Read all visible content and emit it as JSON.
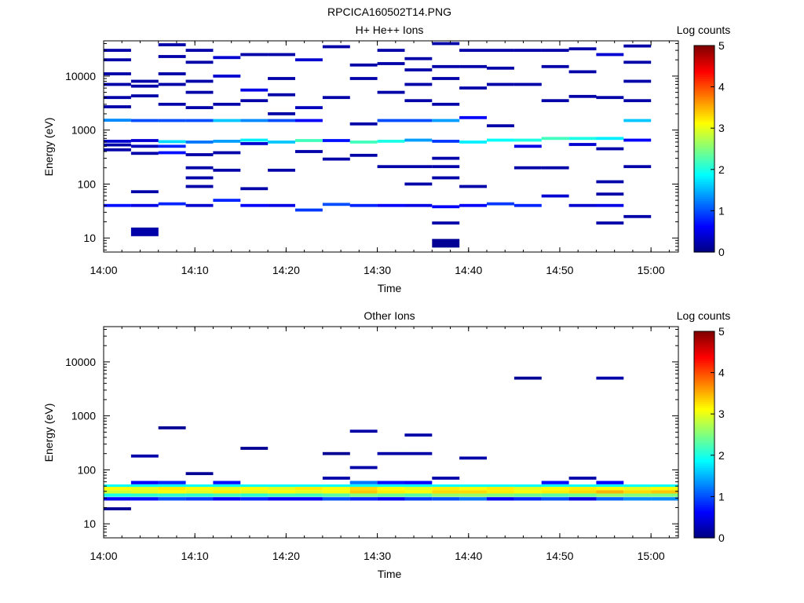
{
  "figure_title": "RPCICA160502T14.PNG",
  "colorbar": {
    "label": "Log counts",
    "range": [
      0,
      5
    ],
    "ticks": [
      "0",
      "1",
      "2",
      "3",
      "4",
      "5"
    ],
    "colormap": "jet"
  },
  "chart_data": [
    {
      "type": "heatmap",
      "title": "H+ He++ Ions",
      "xlabel": "Time",
      "ylabel": "Energy (eV)",
      "y_scale": "log",
      "xlim": [
        "14:00",
        "15:03"
      ],
      "ylim": [
        5.5,
        45000
      ],
      "x_ticks": [
        "14:00",
        "14:10",
        "14:20",
        "14:30",
        "14:40",
        "14:50",
        "15:00"
      ],
      "y_ticks": [
        "10",
        "100",
        "1000",
        "10000"
      ],
      "time_bins": [
        "14:00",
        "14:03",
        "14:06",
        "14:09",
        "14:12",
        "14:15",
        "14:18",
        "14:21",
        "14:24",
        "14:27",
        "14:30",
        "14:33",
        "14:36",
        "14:39",
        "14:42",
        "14:45",
        "14:48",
        "14:51",
        "14:54",
        "14:57",
        "15:00"
      ],
      "cells": [
        {
          "bin": 0,
          "e": 40,
          "v": 0.7
        },
        {
          "bin": 0,
          "e": 430,
          "v": 0.2
        },
        {
          "bin": 0,
          "e": 530,
          "v": 0.2
        },
        {
          "bin": 0,
          "e": 620,
          "v": 0.4
        },
        {
          "bin": 0,
          "e": 1520,
          "v": 1.3
        },
        {
          "bin": 0,
          "e": 2700,
          "v": 0.2
        },
        {
          "bin": 0,
          "e": 4000,
          "v": 0.2
        },
        {
          "bin": 0,
          "e": 7000,
          "v": 0.2
        },
        {
          "bin": 0,
          "e": 11000,
          "v": 0.2
        },
        {
          "bin": 0,
          "e": 20000,
          "v": 0.2
        },
        {
          "bin": 0,
          "e": 30000,
          "v": 0.2
        },
        {
          "bin": 1,
          "e": 13,
          "v": 0.2
        },
        {
          "bin": 1,
          "e": 40,
          "v": 0.5
        },
        {
          "bin": 1,
          "e": 72,
          "v": 0.2
        },
        {
          "bin": 1,
          "e": 370,
          "v": 0.2
        },
        {
          "bin": 1,
          "e": 500,
          "v": 0.3
        },
        {
          "bin": 1,
          "e": 640,
          "v": 0.4
        },
        {
          "bin": 1,
          "e": 1500,
          "v": 1.0
        },
        {
          "bin": 1,
          "e": 4300,
          "v": 0.2
        },
        {
          "bin": 1,
          "e": 6500,
          "v": 0.2
        },
        {
          "bin": 1,
          "e": 8000,
          "v": 0.2
        },
        {
          "bin": 2,
          "e": 43,
          "v": 0.8
        },
        {
          "bin": 2,
          "e": 380,
          "v": 0.7
        },
        {
          "bin": 2,
          "e": 500,
          "v": 0.8
        },
        {
          "bin": 2,
          "e": 610,
          "v": 1.7
        },
        {
          "bin": 2,
          "e": 1500,
          "v": 1.0
        },
        {
          "bin": 2,
          "e": 3000,
          "v": 0.2
        },
        {
          "bin": 2,
          "e": 7000,
          "v": 0.2
        },
        {
          "bin": 2,
          "e": 11000,
          "v": 0.2
        },
        {
          "bin": 2,
          "e": 23000,
          "v": 0.2
        },
        {
          "bin": 2,
          "e": 38000,
          "v": 0.2
        },
        {
          "bin": 3,
          "e": 40,
          "v": 0.4
        },
        {
          "bin": 3,
          "e": 90,
          "v": 0.2
        },
        {
          "bin": 3,
          "e": 130,
          "v": 0.2
        },
        {
          "bin": 3,
          "e": 200,
          "v": 0.2
        },
        {
          "bin": 3,
          "e": 350,
          "v": 0.2
        },
        {
          "bin": 3,
          "e": 600,
          "v": 1.2
        },
        {
          "bin": 3,
          "e": 1500,
          "v": 1.0
        },
        {
          "bin": 3,
          "e": 2600,
          "v": 0.2
        },
        {
          "bin": 3,
          "e": 5000,
          "v": 0.2
        },
        {
          "bin": 3,
          "e": 8000,
          "v": 0.2
        },
        {
          "bin": 3,
          "e": 18000,
          "v": 0.2
        },
        {
          "bin": 3,
          "e": 30000,
          "v": 0.2
        },
        {
          "bin": 4,
          "e": 50,
          "v": 0.8
        },
        {
          "bin": 4,
          "e": 180,
          "v": 0.2
        },
        {
          "bin": 4,
          "e": 380,
          "v": 0.2
        },
        {
          "bin": 4,
          "e": 620,
          "v": 1.4
        },
        {
          "bin": 4,
          "e": 1500,
          "v": 1.6
        },
        {
          "bin": 4,
          "e": 3000,
          "v": 0.2
        },
        {
          "bin": 4,
          "e": 10000,
          "v": 0.4
        },
        {
          "bin": 4,
          "e": 22000,
          "v": 0.4
        },
        {
          "bin": 5,
          "e": 40,
          "v": 0.6
        },
        {
          "bin": 5,
          "e": 82,
          "v": 0.2
        },
        {
          "bin": 5,
          "e": 560,
          "v": 0.4
        },
        {
          "bin": 5,
          "e": 650,
          "v": 1.8
        },
        {
          "bin": 5,
          "e": 1500,
          "v": 1.3
        },
        {
          "bin": 5,
          "e": 3500,
          "v": 0.2
        },
        {
          "bin": 5,
          "e": 5500,
          "v": 0.5
        },
        {
          "bin": 5,
          "e": 25000,
          "v": 0.2
        },
        {
          "bin": 6,
          "e": 40,
          "v": 0.5
        },
        {
          "bin": 6,
          "e": 180,
          "v": 0.2
        },
        {
          "bin": 6,
          "e": 600,
          "v": 1.6
        },
        {
          "bin": 6,
          "e": 1500,
          "v": 1.0
        },
        {
          "bin": 6,
          "e": 2000,
          "v": 0.2
        },
        {
          "bin": 6,
          "e": 4500,
          "v": 0.2
        },
        {
          "bin": 6,
          "e": 9000,
          "v": 0.2
        },
        {
          "bin": 6,
          "e": 25000,
          "v": 0.2
        },
        {
          "bin": 7,
          "e": 33,
          "v": 0.9
        },
        {
          "bin": 7,
          "e": 400,
          "v": 0.2
        },
        {
          "bin": 7,
          "e": 640,
          "v": 2.2
        },
        {
          "bin": 7,
          "e": 1500,
          "v": 0.6
        },
        {
          "bin": 7,
          "e": 2600,
          "v": 0.3
        },
        {
          "bin": 7,
          "e": 20000,
          "v": 0.4
        },
        {
          "bin": 8,
          "e": 42,
          "v": 1.0
        },
        {
          "bin": 8,
          "e": 290,
          "v": 0.2
        },
        {
          "bin": 8,
          "e": 640,
          "v": 0.7
        },
        {
          "bin": 8,
          "e": 4000,
          "v": 0.2
        },
        {
          "bin": 8,
          "e": 35000,
          "v": 0.2
        },
        {
          "bin": 9,
          "e": 40,
          "v": 0.8
        },
        {
          "bin": 9,
          "e": 340,
          "v": 0.2
        },
        {
          "bin": 9,
          "e": 600,
          "v": 2.2
        },
        {
          "bin": 9,
          "e": 1300,
          "v": 0.2
        },
        {
          "bin": 9,
          "e": 9000,
          "v": 0.2
        },
        {
          "bin": 9,
          "e": 16000,
          "v": 0.2
        },
        {
          "bin": 10,
          "e": 40,
          "v": 0.6
        },
        {
          "bin": 10,
          "e": 210,
          "v": 0.2
        },
        {
          "bin": 10,
          "e": 620,
          "v": 2.0
        },
        {
          "bin": 10,
          "e": 1500,
          "v": 1.0
        },
        {
          "bin": 10,
          "e": 5000,
          "v": 0.2
        },
        {
          "bin": 10,
          "e": 17000,
          "v": 0.2
        },
        {
          "bin": 10,
          "e": 30000,
          "v": 0.2
        },
        {
          "bin": 11,
          "e": 40,
          "v": 0.5
        },
        {
          "bin": 11,
          "e": 100,
          "v": 0.2
        },
        {
          "bin": 11,
          "e": 210,
          "v": 0.2
        },
        {
          "bin": 11,
          "e": 650,
          "v": 1.4
        },
        {
          "bin": 11,
          "e": 1500,
          "v": 1.0
        },
        {
          "bin": 11,
          "e": 3500,
          "v": 0.2
        },
        {
          "bin": 11,
          "e": 7000,
          "v": 0.2
        },
        {
          "bin": 11,
          "e": 13000,
          "v": 0.2
        },
        {
          "bin": 11,
          "e": 21000,
          "v": 0.2
        },
        {
          "bin": 12,
          "e": 8,
          "v": 0.1
        },
        {
          "bin": 12,
          "e": 19,
          "v": 0.2
        },
        {
          "bin": 12,
          "e": 38,
          "v": 0.6
        },
        {
          "bin": 12,
          "e": 130,
          "v": 0.2
        },
        {
          "bin": 12,
          "e": 210,
          "v": 0.2
        },
        {
          "bin": 12,
          "e": 300,
          "v": 0.2
        },
        {
          "bin": 12,
          "e": 620,
          "v": 0.9
        },
        {
          "bin": 12,
          "e": 1500,
          "v": 1.4
        },
        {
          "bin": 12,
          "e": 3000,
          "v": 0.2
        },
        {
          "bin": 12,
          "e": 9000,
          "v": 0.2
        },
        {
          "bin": 12,
          "e": 15000,
          "v": 0.2
        },
        {
          "bin": 12,
          "e": 40000,
          "v": 0.2
        },
        {
          "bin": 13,
          "e": 40,
          "v": 0.6
        },
        {
          "bin": 13,
          "e": 90,
          "v": 0.2
        },
        {
          "bin": 13,
          "e": 600,
          "v": 1.8
        },
        {
          "bin": 13,
          "e": 1700,
          "v": 0.6
        },
        {
          "bin": 13,
          "e": 6000,
          "v": 0.2
        },
        {
          "bin": 13,
          "e": 15000,
          "v": 0.2
        },
        {
          "bin": 13,
          "e": 30000,
          "v": 0.2
        },
        {
          "bin": 14,
          "e": 43,
          "v": 0.9
        },
        {
          "bin": 14,
          "e": 650,
          "v": 1.9
        },
        {
          "bin": 14,
          "e": 1200,
          "v": 0.2
        },
        {
          "bin": 14,
          "e": 7000,
          "v": 0.2
        },
        {
          "bin": 14,
          "e": 14000,
          "v": 0.2
        },
        {
          "bin": 14,
          "e": 30000,
          "v": 0.2
        },
        {
          "bin": 15,
          "e": 40,
          "v": 0.8
        },
        {
          "bin": 15,
          "e": 200,
          "v": 0.2
        },
        {
          "bin": 15,
          "e": 500,
          "v": 0.5
        },
        {
          "bin": 15,
          "e": 650,
          "v": 2.0
        },
        {
          "bin": 15,
          "e": 7000,
          "v": 0.2
        },
        {
          "bin": 15,
          "e": 30000,
          "v": 0.2
        },
        {
          "bin": 16,
          "e": 60,
          "v": 0.4
        },
        {
          "bin": 16,
          "e": 200,
          "v": 0.2
        },
        {
          "bin": 16,
          "e": 700,
          "v": 2.2
        },
        {
          "bin": 16,
          "e": 3500,
          "v": 0.2
        },
        {
          "bin": 16,
          "e": 15000,
          "v": 0.2
        },
        {
          "bin": 16,
          "e": 30000,
          "v": 0.2
        },
        {
          "bin": 17,
          "e": 40,
          "v": 0.4
        },
        {
          "bin": 17,
          "e": 540,
          "v": 0.4
        },
        {
          "bin": 17,
          "e": 700,
          "v": 2.0
        },
        {
          "bin": 17,
          "e": 4200,
          "v": 0.2
        },
        {
          "bin": 17,
          "e": 12000,
          "v": 0.2
        },
        {
          "bin": 17,
          "e": 32000,
          "v": 0.2
        },
        {
          "bin": 18,
          "e": 19,
          "v": 0.2
        },
        {
          "bin": 18,
          "e": 40,
          "v": 0.5
        },
        {
          "bin": 18,
          "e": 65,
          "v": 0.2
        },
        {
          "bin": 18,
          "e": 110,
          "v": 0.2
        },
        {
          "bin": 18,
          "e": 450,
          "v": 0.2
        },
        {
          "bin": 18,
          "e": 700,
          "v": 1.8
        },
        {
          "bin": 18,
          "e": 4000,
          "v": 0.2
        },
        {
          "bin": 18,
          "e": 25000,
          "v": 0.4
        },
        {
          "bin": 19,
          "e": 25,
          "v": 0.2
        },
        {
          "bin": 19,
          "e": 210,
          "v": 0.2
        },
        {
          "bin": 19,
          "e": 650,
          "v": 0.6
        },
        {
          "bin": 19,
          "e": 1500,
          "v": 1.6
        },
        {
          "bin": 19,
          "e": 3500,
          "v": 0.2
        },
        {
          "bin": 19,
          "e": 8000,
          "v": 0.2
        },
        {
          "bin": 19,
          "e": 18000,
          "v": 0.2
        },
        {
          "bin": 19,
          "e": 36000,
          "v": 0.2
        }
      ]
    },
    {
      "type": "heatmap",
      "title": "Other Ions",
      "xlabel": "Time",
      "ylabel": "Energy (eV)",
      "y_scale": "log",
      "xlim": [
        "14:00",
        "15:03"
      ],
      "ylim": [
        5.5,
        45000
      ],
      "x_ticks": [
        "14:00",
        "14:10",
        "14:20",
        "14:30",
        "14:40",
        "14:50",
        "15:00"
      ],
      "y_ticks": [
        "10",
        "100",
        "1000",
        "10000"
      ],
      "time_bins": [
        "14:00",
        "14:03",
        "14:06",
        "14:09",
        "14:12",
        "14:15",
        "14:18",
        "14:21",
        "14:24",
        "14:27",
        "14:30",
        "14:33",
        "14:36",
        "14:39",
        "14:42",
        "14:45",
        "14:48",
        "14:51",
        "14:54",
        "14:57",
        "15:00"
      ],
      "cells": [
        {
          "bin": 0,
          "e": 19,
          "v": 0.1
        },
        {
          "bin": 1,
          "e": 180,
          "v": 0.2
        },
        {
          "bin": 2,
          "e": 600,
          "v": 0.1
        },
        {
          "bin": 3,
          "e": 85,
          "v": 0.1
        },
        {
          "bin": 5,
          "e": 250,
          "v": 0.1
        },
        {
          "bin": 8,
          "e": 200,
          "v": 0.1
        },
        {
          "bin": 8,
          "e": 70,
          "v": 0.2
        },
        {
          "bin": 9,
          "e": 520,
          "v": 0.2
        },
        {
          "bin": 9,
          "e": 110,
          "v": 0.2
        },
        {
          "bin": 10,
          "e": 200,
          "v": 0.2
        },
        {
          "bin": 11,
          "e": 200,
          "v": 0.2
        },
        {
          "bin": 11,
          "e": 440,
          "v": 0.2
        },
        {
          "bin": 12,
          "e": 70,
          "v": 0.2
        },
        {
          "bin": 13,
          "e": 165,
          "v": 0.2
        },
        {
          "bin": 15,
          "e": 5000,
          "v": 0.1
        },
        {
          "bin": 17,
          "e": 70,
          "v": 0.2
        },
        {
          "bin": 18,
          "e": 5000,
          "v": 0.2
        }
      ],
      "bands": [
        {
          "e": 58,
          "values": [
            0,
            0.6,
            0.8,
            0,
            0.7,
            0,
            0,
            0,
            0,
            1.2,
            0.7,
            0.6,
            0,
            0,
            0,
            0,
            0.7,
            0,
            0.6,
            0,
            0
          ]
        },
        {
          "e": 50,
          "values": [
            1.9,
            1.9,
            1.9,
            1.9,
            1.9,
            1.9,
            1.9,
            1.9,
            1.9,
            1.9,
            1.9,
            1.9,
            1.9,
            1.9,
            1.9,
            1.9,
            1.9,
            1.9,
            1.9,
            1.9,
            1.9
          ]
        },
        {
          "e": 45,
          "values": [
            3.1,
            3.0,
            3.2,
            3.1,
            3.0,
            3.1,
            3.0,
            3.2,
            3.1,
            3.3,
            3.1,
            3.0,
            3.2,
            3.1,
            3.2,
            3.0,
            3.1,
            3.2,
            3.1,
            3.0,
            3.1
          ]
        },
        {
          "e": 39,
          "values": [
            2.9,
            3.0,
            3.1,
            3.0,
            3.2,
            3.0,
            3.1,
            3.0,
            3.1,
            3.4,
            3.2,
            3.1,
            3.3,
            3.3,
            3.2,
            3.1,
            3.2,
            3.3,
            3.5,
            3.3,
            3.4
          ]
        },
        {
          "e": 34,
          "values": [
            2.0,
            2.1,
            2.1,
            2.1,
            2.2,
            2.1,
            2.2,
            2.2,
            2.3,
            2.5,
            2.4,
            2.3,
            2.6,
            2.6,
            2.5,
            2.4,
            2.3,
            2.4,
            2.6,
            2.5,
            2.5
          ]
        },
        {
          "e": 29,
          "values": [
            0.6,
            0.7,
            1.0,
            0.9,
            0.6,
            0.8,
            0.6,
            0.6,
            1.0,
            0.8,
            0.6,
            0.9,
            1.0,
            1.2,
            0.6,
            0.8,
            1.0,
            0.5,
            1.1,
            1.3,
            1.3
          ]
        }
      ]
    }
  ]
}
